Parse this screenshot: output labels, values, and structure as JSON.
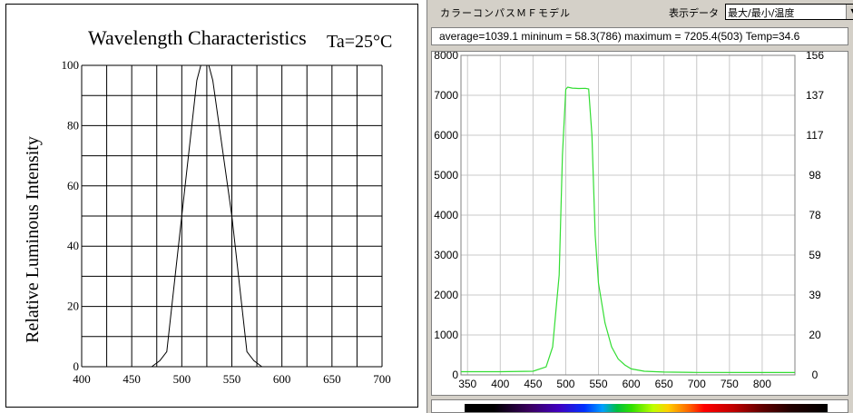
{
  "left_chart": {
    "title": "Wavelength Characteristics",
    "condition": "Ta=25°C",
    "ylabel": "Relative Luminous Intensity"
  },
  "right_app": {
    "model_label": "カラーコンパスＭＦモデル",
    "display_data_label": "表示データ",
    "display_select_value": "最大/最小/温度",
    "stats_text": "average=1039.1 mininum =   58.3(786) maximum = 7205.4(503) Temp=34.6"
  },
  "colors": {
    "left_line": "#000000",
    "right_line": "#33dd33",
    "grid_right": "#c8c8c8"
  },
  "chart_data": [
    {
      "type": "line",
      "title": "Wavelength Characteristics",
      "xlabel": "",
      "ylabel": "Relative Luminous Intensity",
      "xlim": [
        400,
        700
      ],
      "ylim": [
        0,
        100
      ],
      "xticks": [
        400,
        450,
        500,
        550,
        600,
        650,
        700
      ],
      "yticks": [
        0,
        20,
        40,
        60,
        80,
        100
      ],
      "grid": true,
      "series": [
        {
          "x": [
            470,
            478,
            485,
            500,
            515,
            519,
            521,
            524,
            527,
            531,
            550,
            565,
            572,
            580
          ],
          "y": [
            0,
            2,
            5,
            50,
            95,
            100,
            100,
            100,
            100,
            95,
            50,
            5,
            2,
            0
          ]
        }
      ]
    },
    {
      "type": "line",
      "xlim": [
        340,
        850
      ],
      "ylim": [
        0,
        8000
      ],
      "xticks": [
        350,
        400,
        450,
        500,
        550,
        600,
        650,
        700,
        750,
        800
      ],
      "yticks": [
        0,
        1000,
        2000,
        3000,
        4000,
        5000,
        6000,
        7000,
        8000
      ],
      "y2ticks": [
        "0",
        "20",
        "39",
        "59",
        "78",
        "98",
        "117",
        "137",
        "156"
      ],
      "grid": true,
      "series": [
        {
          "x": [
            340,
            400,
            450,
            470,
            480,
            490,
            495,
            500,
            503,
            510,
            520,
            530,
            535,
            540,
            545,
            550,
            560,
            570,
            580,
            590,
            600,
            620,
            650,
            700,
            786,
            850
          ],
          "y": [
            80,
            80,
            90,
            200,
            700,
            2500,
            5500,
            7150,
            7205,
            7180,
            7170,
            7175,
            7160,
            6000,
            3500,
            2300,
            1300,
            700,
            400,
            250,
            150,
            90,
            70,
            62,
            58,
            60
          ]
        }
      ]
    }
  ]
}
